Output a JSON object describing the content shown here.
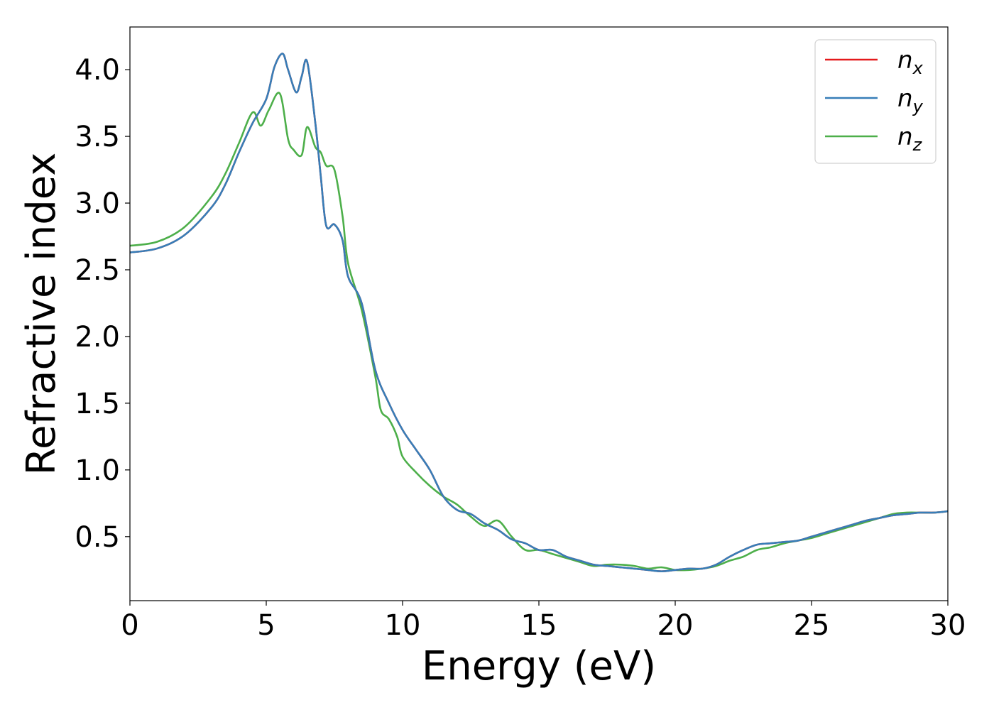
{
  "chart_data": {
    "type": "line",
    "xlabel": "Energy (eV)",
    "ylabel": "Refractive index",
    "xlim": [
      0,
      30
    ],
    "ylim": [
      0.02,
      4.32
    ],
    "xticks": [
      0,
      5,
      10,
      15,
      20,
      25,
      30
    ],
    "xtick_labels": [
      "0",
      "5",
      "10",
      "15",
      "20",
      "25",
      "30"
    ],
    "yticks": [
      0.5,
      1.0,
      1.5,
      2.0,
      2.5,
      3.0,
      3.5,
      4.0
    ],
    "ytick_labels": [
      "0.5",
      "1.0",
      "1.5",
      "2.0",
      "2.5",
      "3.0",
      "3.5",
      "4.0"
    ],
    "grid": false,
    "legend_position": "top-right",
    "series": [
      {
        "name": "n",
        "subscript": "x",
        "color": "#e41a1c",
        "x": [
          0,
          1,
          2,
          3,
          3.5,
          4,
          4.5,
          5,
          5.3,
          5.6,
          5.8,
          6.1,
          6.3,
          6.5,
          6.8,
          7,
          7.2,
          7.5,
          7.8,
          8,
          8.5,
          9,
          9.5,
          10,
          10.5,
          11,
          11.5,
          12,
          12.5,
          13,
          13.5,
          14,
          14.5,
          15,
          15.5,
          16,
          16.5,
          17,
          17.5,
          18,
          18.5,
          19,
          19.5,
          20,
          20.5,
          21,
          21.5,
          22,
          22.5,
          23,
          23.5,
          24,
          24.5,
          25,
          25.5,
          26,
          26.5,
          27,
          27.5,
          28,
          28.5,
          29,
          29.5,
          30
        ],
        "y": [
          2.63,
          2.66,
          2.76,
          2.97,
          3.14,
          3.38,
          3.6,
          3.78,
          4.02,
          4.12,
          4.0,
          3.83,
          3.95,
          4.06,
          3.6,
          3.2,
          2.83,
          2.84,
          2.72,
          2.45,
          2.25,
          1.75,
          1.5,
          1.3,
          1.15,
          1.0,
          0.8,
          0.7,
          0.67,
          0.6,
          0.55,
          0.48,
          0.45,
          0.4,
          0.4,
          0.35,
          0.32,
          0.29,
          0.28,
          0.27,
          0.26,
          0.25,
          0.24,
          0.25,
          0.26,
          0.26,
          0.29,
          0.35,
          0.4,
          0.44,
          0.45,
          0.46,
          0.47,
          0.5,
          0.53,
          0.56,
          0.59,
          0.62,
          0.64,
          0.66,
          0.67,
          0.68,
          0.68,
          0.69
        ]
      },
      {
        "name": "n",
        "subscript": "y",
        "color": "#377eb8",
        "x": [
          0,
          1,
          2,
          3,
          3.5,
          4,
          4.5,
          5,
          5.3,
          5.6,
          5.8,
          6.1,
          6.3,
          6.5,
          6.8,
          7,
          7.2,
          7.5,
          7.8,
          8,
          8.5,
          9,
          9.5,
          10,
          10.5,
          11,
          11.5,
          12,
          12.5,
          13,
          13.5,
          14,
          14.5,
          15,
          15.5,
          16,
          16.5,
          17,
          17.5,
          18,
          18.5,
          19,
          19.5,
          20,
          20.5,
          21,
          21.5,
          22,
          22.5,
          23,
          23.5,
          24,
          24.5,
          25,
          25.5,
          26,
          26.5,
          27,
          27.5,
          28,
          28.5,
          29,
          29.5,
          30
        ],
        "y": [
          2.63,
          2.66,
          2.76,
          2.97,
          3.14,
          3.38,
          3.6,
          3.78,
          4.02,
          4.12,
          4.0,
          3.83,
          3.95,
          4.06,
          3.6,
          3.2,
          2.83,
          2.84,
          2.72,
          2.45,
          2.25,
          1.75,
          1.5,
          1.3,
          1.15,
          1.0,
          0.8,
          0.7,
          0.67,
          0.6,
          0.55,
          0.48,
          0.45,
          0.4,
          0.4,
          0.35,
          0.32,
          0.29,
          0.28,
          0.27,
          0.26,
          0.25,
          0.24,
          0.25,
          0.26,
          0.26,
          0.29,
          0.35,
          0.4,
          0.44,
          0.45,
          0.46,
          0.47,
          0.5,
          0.53,
          0.56,
          0.59,
          0.62,
          0.64,
          0.66,
          0.67,
          0.68,
          0.68,
          0.69
        ]
      },
      {
        "name": "n",
        "subscript": "z",
        "color": "#4daf4a",
        "x": [
          0,
          1,
          2,
          3,
          3.5,
          4,
          4.5,
          4.8,
          5.1,
          5.5,
          5.8,
          6,
          6.3,
          6.5,
          6.8,
          7,
          7.2,
          7.5,
          7.8,
          8,
          8.5,
          9,
          9.2,
          9.5,
          9.8,
          10,
          10.5,
          11,
          11.5,
          12,
          12.5,
          13,
          13.5,
          14,
          14.5,
          15,
          15.5,
          16,
          16.5,
          17,
          17.5,
          18,
          18.5,
          19,
          19.5,
          20,
          20.5,
          21,
          21.5,
          22,
          22.5,
          23,
          23.5,
          24,
          24.5,
          25,
          25.5,
          26,
          26.5,
          27,
          27.5,
          28,
          28.5,
          29,
          29.5,
          30
        ],
        "y": [
          2.68,
          2.71,
          2.82,
          3.05,
          3.22,
          3.45,
          3.68,
          3.58,
          3.7,
          3.82,
          3.48,
          3.4,
          3.36,
          3.57,
          3.42,
          3.38,
          3.28,
          3.25,
          2.9,
          2.55,
          2.2,
          1.7,
          1.45,
          1.38,
          1.25,
          1.1,
          0.98,
          0.88,
          0.8,
          0.74,
          0.65,
          0.58,
          0.62,
          0.5,
          0.4,
          0.4,
          0.37,
          0.34,
          0.31,
          0.28,
          0.29,
          0.29,
          0.28,
          0.26,
          0.27,
          0.25,
          0.25,
          0.26,
          0.28,
          0.32,
          0.35,
          0.4,
          0.42,
          0.45,
          0.47,
          0.49,
          0.52,
          0.55,
          0.58,
          0.61,
          0.64,
          0.67,
          0.68,
          0.68,
          0.68,
          0.69
        ]
      }
    ]
  }
}
